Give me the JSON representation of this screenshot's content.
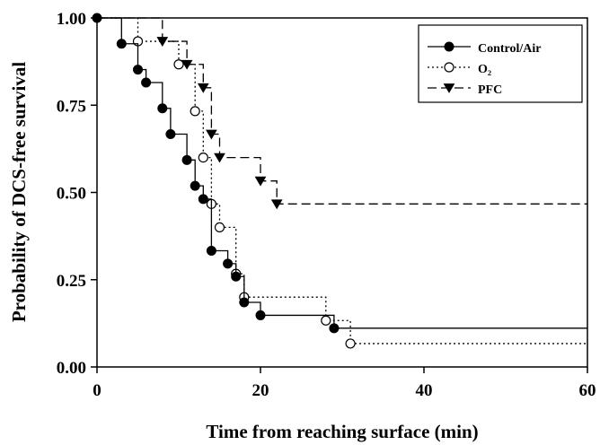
{
  "chart_data": {
    "type": "line",
    "subtype": "kaplan-meier step",
    "title": "",
    "xlabel": "Time from reaching surface (min)",
    "ylabel": "Probability of DCS-free survival",
    "xlim": [
      0,
      60
    ],
    "ylim": [
      0,
      1
    ],
    "x_ticks": [
      0,
      20,
      40,
      60
    ],
    "y_ticks": [
      0.0,
      0.25,
      0.5,
      0.75,
      1.0
    ],
    "x_tick_labels": [
      "0",
      "20",
      "40",
      "60"
    ],
    "y_tick_labels": [
      "0.00",
      "0.25",
      "0.50",
      "0.75",
      "1.00"
    ],
    "grid": false,
    "legend_position": "top-right",
    "series": [
      {
        "name": "Control/Air",
        "line_style": "solid",
        "marker": "filled-circle",
        "color": "#000000",
        "steps": [
          [
            0,
            1.0
          ],
          [
            3,
            0.926
          ],
          [
            5,
            0.852
          ],
          [
            6,
            0.815
          ],
          [
            8,
            0.741
          ],
          [
            9,
            0.667
          ],
          [
            11,
            0.593
          ],
          [
            12,
            0.519
          ],
          [
            13,
            0.481
          ],
          [
            14,
            0.333
          ],
          [
            16,
            0.296
          ],
          [
            17,
            0.259
          ],
          [
            18,
            0.185
          ],
          [
            20,
            0.148
          ],
          [
            29,
            0.111
          ]
        ],
        "end_x": 60,
        "markers": [
          [
            0,
            1.0
          ],
          [
            3,
            0.926
          ],
          [
            5,
            0.852
          ],
          [
            6,
            0.815
          ],
          [
            8,
            0.741
          ],
          [
            9,
            0.667
          ],
          [
            11,
            0.593
          ],
          [
            12,
            0.519
          ],
          [
            13,
            0.481
          ],
          [
            14,
            0.333
          ],
          [
            16,
            0.296
          ],
          [
            17,
            0.259
          ],
          [
            18,
            0.185
          ],
          [
            20,
            0.148
          ],
          [
            29,
            0.111
          ]
        ]
      },
      {
        "name": "O₂",
        "line_style": "dotted",
        "marker": "open-circle",
        "color": "#000000",
        "steps": [
          [
            0,
            1.0
          ],
          [
            5,
            0.933
          ],
          [
            10,
            0.867
          ],
          [
            12,
            0.733
          ],
          [
            13,
            0.6
          ],
          [
            14,
            0.467
          ],
          [
            15,
            0.4
          ],
          [
            17,
            0.267
          ],
          [
            18,
            0.2
          ],
          [
            28,
            0.133
          ],
          [
            31,
            0.067
          ]
        ],
        "end_x": 60,
        "markers": [
          [
            5,
            0.933
          ],
          [
            10,
            0.867
          ],
          [
            12,
            0.733
          ],
          [
            13,
            0.6
          ],
          [
            14,
            0.467
          ],
          [
            15,
            0.4
          ],
          [
            17,
            0.267
          ],
          [
            18,
            0.2
          ],
          [
            28,
            0.133
          ],
          [
            31,
            0.067
          ]
        ]
      },
      {
        "name": "PFC",
        "line_style": "dashed",
        "marker": "filled-triangle-down",
        "color": "#000000",
        "steps": [
          [
            0,
            1.0
          ],
          [
            8,
            0.933
          ],
          [
            11,
            0.867
          ],
          [
            13,
            0.8
          ],
          [
            14,
            0.667
          ],
          [
            15,
            0.6
          ],
          [
            20,
            0.533
          ],
          [
            22,
            0.467
          ]
        ],
        "end_x": 60,
        "markers": [
          [
            8,
            0.933
          ],
          [
            11,
            0.867
          ],
          [
            13,
            0.8
          ],
          [
            14,
            0.667
          ],
          [
            15,
            0.6
          ],
          [
            20,
            0.533
          ],
          [
            22,
            0.467
          ]
        ]
      }
    ]
  }
}
